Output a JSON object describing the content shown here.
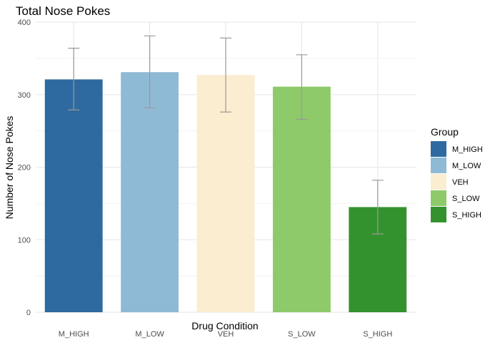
{
  "chart_data": {
    "type": "bar",
    "title": "Total Nose Pokes",
    "xlabel": "Drug Condition",
    "ylabel": "Number of Nose Pokes",
    "categories": [
      "M_HIGH",
      "M_LOW",
      "VEH",
      "S_LOW",
      "S_HIGH"
    ],
    "values": [
      321,
      331,
      327,
      311,
      145
    ],
    "error_low": [
      279,
      282,
      276,
      266,
      108
    ],
    "error_high": [
      364,
      381,
      378,
      355,
      182
    ],
    "colors": [
      "#2E6AA0",
      "#8FBAD6",
      "#FAEDD0",
      "#8FCA6A",
      "#34922E"
    ],
    "error_color": "#999999",
    "ylim": [
      0,
      400
    ],
    "yticks": [
      0,
      100,
      200,
      300,
      400
    ],
    "grid": true,
    "legend": {
      "title": "Group",
      "placement": "right",
      "entries": [
        "M_HIGH",
        "M_LOW",
        "VEH",
        "S_LOW",
        "S_HIGH"
      ]
    }
  }
}
